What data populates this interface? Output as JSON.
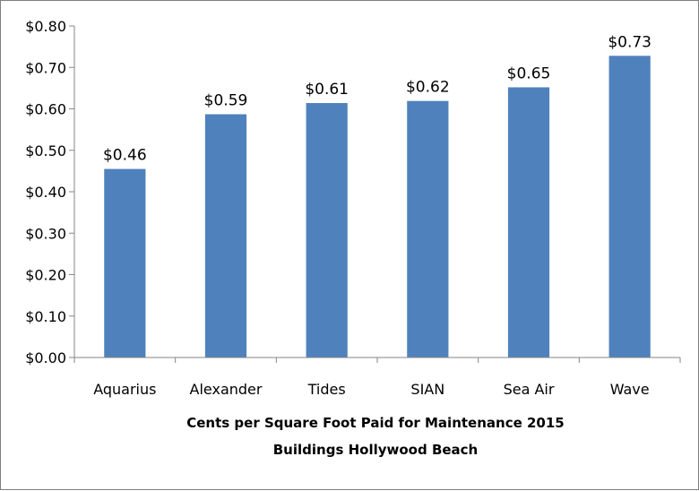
{
  "chart_data": {
    "type": "bar",
    "categories": [
      "Aquarius",
      "Alexander",
      "Tides",
      "SIAN",
      "Sea Air",
      "Wave"
    ],
    "values": [
      0.455,
      0.587,
      0.614,
      0.619,
      0.652,
      0.728
    ],
    "data_labels": [
      "$0.46",
      "$0.59",
      "$0.61",
      "$0.62",
      "$0.65",
      "$0.73"
    ],
    "y_ticks": [
      "$0.00",
      "$0.10",
      "$0.20",
      "$0.30",
      "$0.40",
      "$0.50",
      "$0.60",
      "$0.70",
      "$0.80"
    ],
    "y_tick_values": [
      0,
      0.1,
      0.2,
      0.3,
      0.4,
      0.5,
      0.6,
      0.7,
      0.8
    ],
    "ylim": [
      0,
      0.8
    ],
    "xlabel_line1": "Cents per Square Foot Paid for Maintenance  2015",
    "xlabel_line2": "Buildings Hollywood Beach",
    "grid": false,
    "legend": "none",
    "bar_color": "#4f81bd",
    "axis_color": "#868686"
  }
}
